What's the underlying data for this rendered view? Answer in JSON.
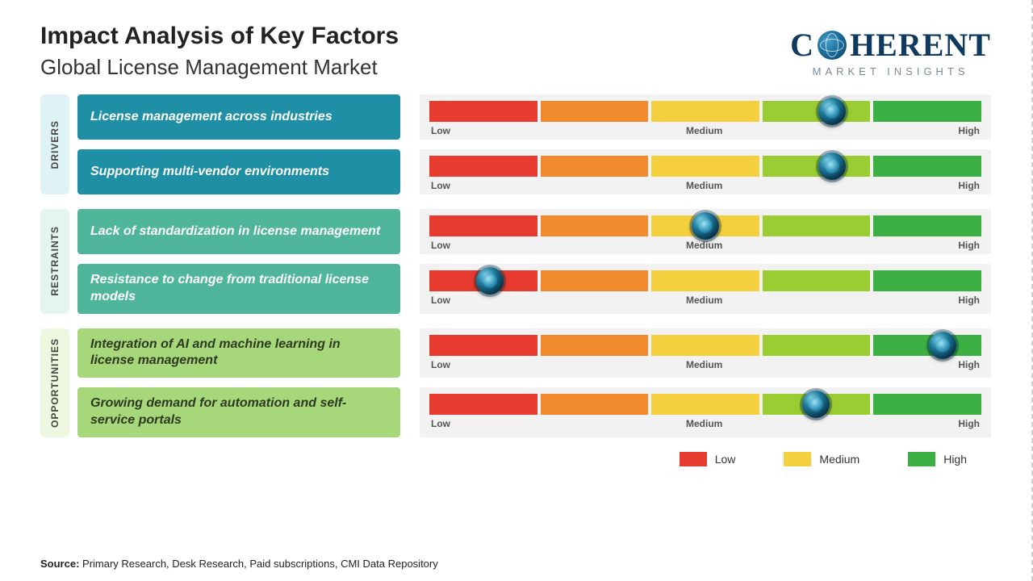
{
  "header": {
    "title": "Impact Analysis of Key Factors",
    "subtitle": "Global License Management Market"
  },
  "logo": {
    "brand_left": "C",
    "brand_right": "HERENT",
    "tagline": "MARKET INSIGHTS",
    "text_color": "#0f3a5f",
    "tagline_color": "#7a8a97"
  },
  "scale": {
    "low_label": "Low",
    "medium_label": "Medium",
    "high_label": "High",
    "segments": [
      {
        "color": "#e63b2e"
      },
      {
        "color": "#f08a2c"
      },
      {
        "color": "#f4d03f"
      },
      {
        "color": "#9acd32"
      },
      {
        "color": "#3cb043"
      }
    ],
    "track_bg": "#f2f2f2",
    "label_color": "#555555",
    "label_fontsize": 12
  },
  "groups": [
    {
      "key": "drivers",
      "label": "DRIVERS",
      "tab_bg": "#dff3f6",
      "factor_bg": "#1f8fa6",
      "factor_text_color": "#ffffff",
      "rows": [
        {
          "label": "License management across industries",
          "position_pct": 73
        },
        {
          "label": "Supporting multi-vendor environments",
          "position_pct": 73
        }
      ]
    },
    {
      "key": "restraints",
      "label": "RESTRAINTS",
      "tab_bg": "#e4f5ef",
      "factor_bg": "#4fb69b",
      "factor_text_color": "#ffffff",
      "rows": [
        {
          "label": "Lack of standardization in license management",
          "position_pct": 50
        },
        {
          "label": "Resistance to change from traditional license models",
          "position_pct": 11
        }
      ]
    },
    {
      "key": "opportunities",
      "label": "OPPORTUNITIES",
      "tab_bg": "#eef7df",
      "factor_bg": "#a6d77a",
      "factor_text_color": "#2d3a1f",
      "rows": [
        {
          "label": "Integration of AI and machine learning in license management",
          "position_pct": 93
        },
        {
          "label": "Growing demand for automation and self-service portals",
          "position_pct": 70
        }
      ]
    }
  ],
  "legend": {
    "items": [
      {
        "label": "Low",
        "color": "#e63b2e"
      },
      {
        "label": "Medium",
        "color": "#f4d03f"
      },
      {
        "label": "High",
        "color": "#3cb043"
      }
    ]
  },
  "source": {
    "prefix": "Source:",
    "text": "Primary Research, Desk Research, Paid subscriptions, CMI Data Repository"
  },
  "typography": {
    "title_fontsize": 30,
    "subtitle_fontsize": 26,
    "factor_fontsize": 16,
    "factor_fontstyle": "italic",
    "factor_fontweight": 700
  }
}
